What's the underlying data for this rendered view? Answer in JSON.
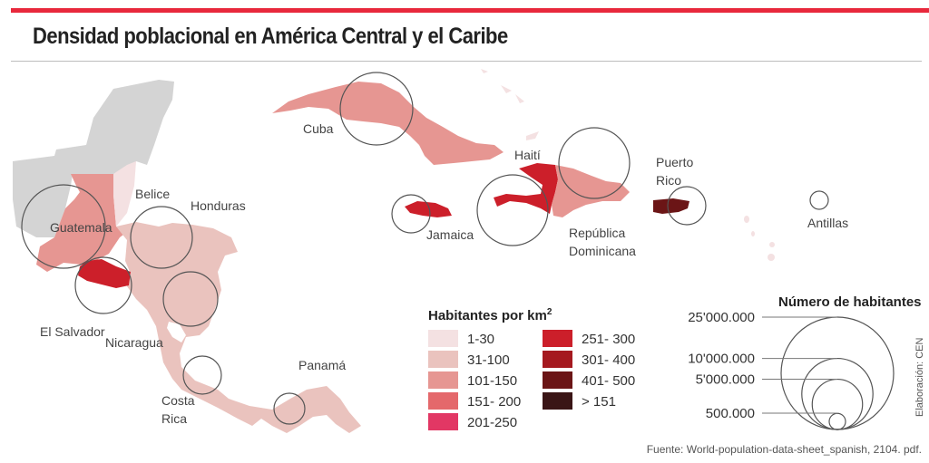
{
  "header": {
    "title": "Densidad poblacional en América Central y el Caribe"
  },
  "colors": {
    "accent_bar": "#e8283c",
    "mexico_gray": "#d4d4d4",
    "scale": [
      "#f4e1e2",
      "#eac3be",
      "#e69692",
      "#e4686b",
      "#e23764",
      "#cc1f2a",
      "#a5191f",
      "#6b1516",
      "#3a1516"
    ]
  },
  "countries": [
    {
      "name": "Guatemala",
      "density_class": "101-150"
    },
    {
      "name": "Belice",
      "density_class": "1-30"
    },
    {
      "name": "Honduras",
      "density_class": "31-100"
    },
    {
      "name": "El Salvador",
      "density_class": "251- 300"
    },
    {
      "name": "Nicaragua",
      "density_class": "31-100"
    },
    {
      "name": "Costa Rica",
      "density_class": "31-100"
    },
    {
      "name": "Panamá",
      "density_class": "31-100"
    },
    {
      "name": "Cuba",
      "density_class": "101-150"
    },
    {
      "name": "Jamaica",
      "density_class": "251- 300"
    },
    {
      "name": "Haití",
      "density_class": "251- 300"
    },
    {
      "name": "República Dominicana",
      "density_class": "101-150"
    },
    {
      "name": "Puerto Rico",
      "density_class": "401- 500"
    },
    {
      "name": "Antillas",
      "density_class": "1-30"
    }
  ],
  "labels": {
    "guatemala": "Guatemala",
    "belice": "Belice",
    "honduras": "Honduras",
    "el_salvador": "El Salvador",
    "nicaragua": "Nicaragua",
    "costa_rica_1": "Costa",
    "costa_rica_2": "Rica",
    "panama": "Panamá",
    "cuba": "Cuba",
    "jamaica": "Jamaica",
    "haiti": "Haití",
    "rep_dom_1": "República",
    "rep_dom_2": "Dominicana",
    "puerto_rico_1": "Puerto",
    "puerto_rico_2": "Rico",
    "antillas": "Antillas"
  },
  "density_legend": {
    "title": "Habitantes por km",
    "title_sup": "2",
    "items": [
      {
        "label": "1-30",
        "color": "#f4e1e2"
      },
      {
        "label": "31-100",
        "color": "#eac3be"
      },
      {
        "label": "101-150",
        "color": "#e69692"
      },
      {
        "label": "151- 200",
        "color": "#e4686b"
      },
      {
        "label": "201-250",
        "color": "#e23764"
      },
      {
        "label": "251- 300",
        "color": "#cc1f2a"
      },
      {
        "label": "301- 400",
        "color": "#a5191f"
      },
      {
        "label": "401- 500",
        "color": "#6b1516"
      },
      {
        "label": "> 151",
        "color": "#3a1516"
      }
    ]
  },
  "size_legend": {
    "title": "Número de habitantes",
    "items": [
      {
        "label": "25'000.000",
        "value": 25000000
      },
      {
        "label": "10'000.000",
        "value": 10000000
      },
      {
        "label": "5'000.000",
        "value": 5000000
      },
      {
        "label": "500.000",
        "value": 500000
      }
    ]
  },
  "footer": {
    "source": "Fuente: World-population-data-sheet_spanish, 2104. pdf.",
    "credit": "Elaboración: CEN"
  }
}
